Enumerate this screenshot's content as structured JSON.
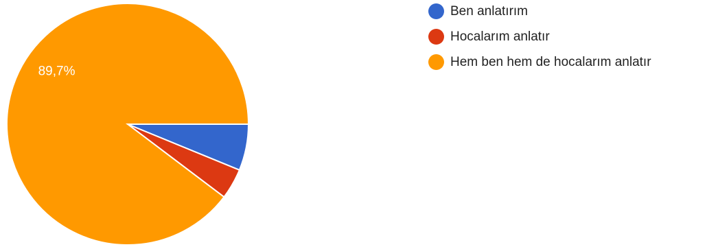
{
  "chart_data": {
    "type": "pie",
    "categories": [
      "Ben anlatırım",
      "Hocalarım anlatır",
      "Hem ben hem de hocalarım anlatır"
    ],
    "values": [
      6.2,
      4.1,
      89.7
    ],
    "colors": [
      "#3366cc",
      "#dc3912",
      "#ff9900"
    ],
    "data_labels": [
      "",
      "",
      "89,7%"
    ],
    "legend_position": "right"
  }
}
